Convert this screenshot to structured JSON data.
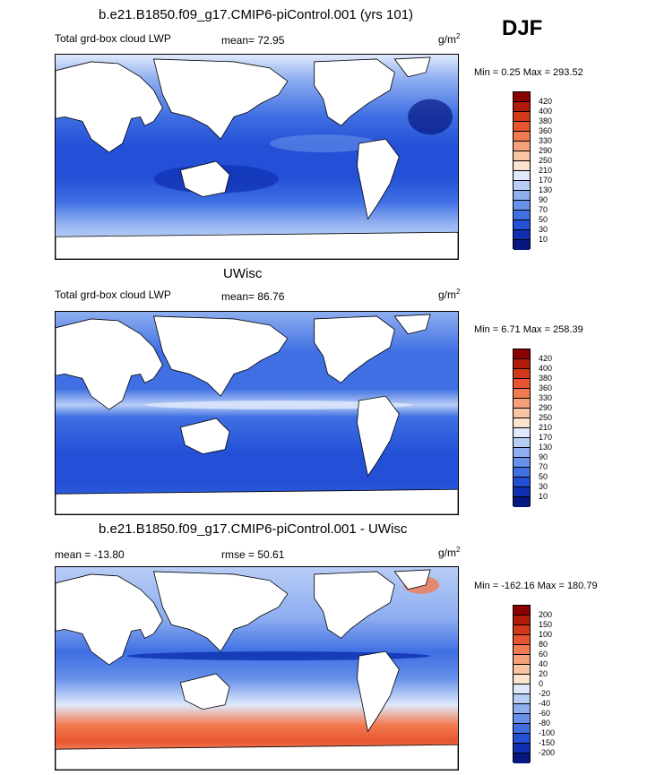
{
  "season": "DJF",
  "units_base": "g/m",
  "units_exp": "2",
  "colors": {
    "deep_blue": "#0d2fa6",
    "mid_blue": "#3c6fe0",
    "light_blue": "#a9c4f5",
    "land": "#ffffff",
    "orange": "#e8603c"
  },
  "panels": [
    {
      "title": "b.e21.B1850.f09_g17.CMIP6-piControl.001 (yrs 101)",
      "left_label": "Total grd-box cloud LWP",
      "center_label": "mean=  72.95",
      "minmax": "Min =   0.25 Max = 293.52",
      "levels": [
        "420",
        "400",
        "380",
        "360",
        "330",
        "290",
        "250",
        "210",
        "170",
        "130",
        "90",
        "70",
        "50",
        "30",
        "10"
      ],
      "colors": [
        "#8b0000",
        "#b01a0a",
        "#d0391a",
        "#e85530",
        "#f27a50",
        "#f6a07a",
        "#f8c4a4",
        "#fbe3d0",
        "#dfe9fb",
        "#b8cdf6",
        "#8eaef0",
        "#6690ea",
        "#3f6fe3",
        "#2350d6",
        "#0d2fb0",
        "#061880"
      ]
    },
    {
      "title": "UWisc",
      "left_label": "Total grd-box cloud LWP",
      "center_label": "mean=  86.76",
      "minmax": "Min =   6.71 Max = 258.39",
      "levels": [
        "420",
        "400",
        "380",
        "360",
        "330",
        "290",
        "250",
        "210",
        "170",
        "130",
        "90",
        "70",
        "50",
        "30",
        "10"
      ],
      "colors": [
        "#8b0000",
        "#b01a0a",
        "#d0391a",
        "#e85530",
        "#f27a50",
        "#f6a07a",
        "#f8c4a4",
        "#fbe3d0",
        "#dfe9fb",
        "#b8cdf6",
        "#8eaef0",
        "#6690ea",
        "#3f6fe3",
        "#2350d6",
        "#0d2fb0",
        "#061880"
      ]
    },
    {
      "title": "b.e21.B1850.f09_g17.CMIP6-piControl.001 - UWisc",
      "left_label": "mean = -13.80",
      "center_label": "rmse =  50.61",
      "minmax": "Min = -162.16 Max = 180.79",
      "levels": [
        "200",
        "150",
        "100",
        "80",
        "60",
        "40",
        "20",
        "0",
        "-20",
        "-40",
        "-60",
        "-80",
        "-100",
        "-150",
        "-200"
      ],
      "colors": [
        "#8b0000",
        "#b01a0a",
        "#d0391a",
        "#e85530",
        "#f27a50",
        "#f6a07a",
        "#f8c4a4",
        "#fbe3d0",
        "#dfe9fb",
        "#b8cdf6",
        "#8eaef0",
        "#6690ea",
        "#3f6fe3",
        "#2350d6",
        "#0d2fb0",
        "#061880"
      ]
    }
  ]
}
